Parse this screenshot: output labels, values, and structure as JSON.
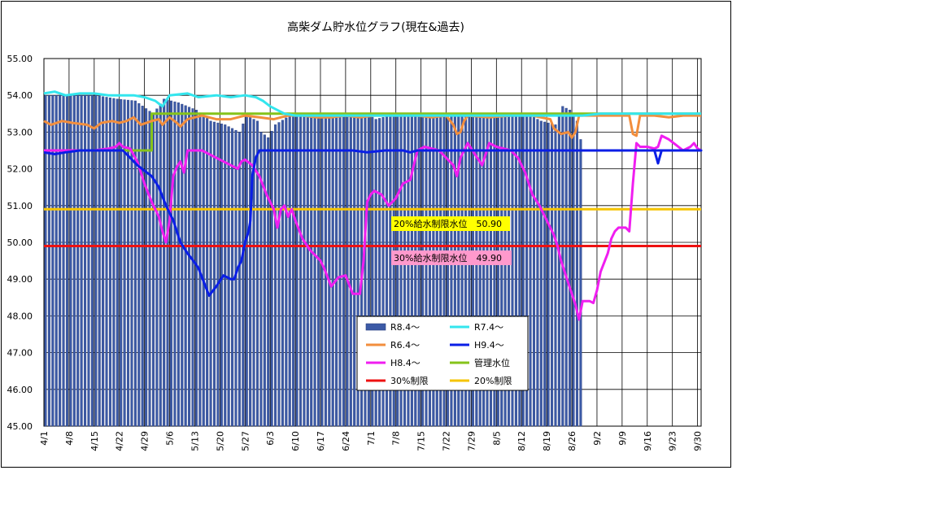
{
  "chart_data": {
    "type": "bar+line",
    "title": "高柴ダム貯水位グラフ(現在&過去)",
    "ylim": [
      45.0,
      55.0
    ],
    "yticks": [
      "45.00",
      "46.00",
      "47.00",
      "48.00",
      "49.00",
      "50.00",
      "51.00",
      "52.00",
      "53.00",
      "54.00",
      "55.00"
    ],
    "xticks": [
      "4/1",
      "4/8",
      "4/15",
      "4/22",
      "4/29",
      "5/6",
      "5/13",
      "5/20",
      "5/27",
      "6/3",
      "6/10",
      "6/17",
      "6/24",
      "7/1",
      "7/8",
      "7/15",
      "7/22",
      "7/29",
      "8/5",
      "8/12",
      "8/19",
      "8/26",
      "9/2",
      "9/9",
      "9/16",
      "9/23",
      "9/30"
    ],
    "days": 183,
    "grid": "vertical+horizontal",
    "legend_position": "bottom-center",
    "series": [
      {
        "name": "R8.4～",
        "type": "bar",
        "color": "#3c5aa6",
        "points": [
          [
            0,
            54.0
          ],
          [
            7,
            54.0
          ],
          [
            14,
            54.0
          ],
          [
            20,
            53.9
          ],
          [
            25,
            53.85
          ],
          [
            30,
            53.5
          ],
          [
            33,
            53.9
          ],
          [
            37,
            53.8
          ],
          [
            42,
            53.6
          ],
          [
            46,
            53.3
          ],
          [
            50,
            53.2
          ],
          [
            54,
            53.0
          ],
          [
            56,
            53.45
          ],
          [
            59,
            53.3
          ],
          [
            60,
            53.0
          ],
          [
            62,
            52.85
          ],
          [
            64,
            53.2
          ],
          [
            68,
            53.45
          ],
          [
            90,
            53.45
          ],
          [
            92,
            53.35
          ],
          [
            96,
            53.45
          ],
          [
            135,
            53.45
          ],
          [
            138,
            53.3
          ],
          [
            142,
            53.2
          ],
          [
            144,
            53.7
          ],
          [
            146,
            53.6
          ],
          [
            148,
            53.3
          ],
          [
            149,
            52.8
          ]
        ]
      },
      {
        "name": "R7.4～",
        "type": "line",
        "color": "#33e6ee",
        "points": [
          [
            0,
            54.05
          ],
          [
            3,
            54.1
          ],
          [
            6,
            54.0
          ],
          [
            10,
            54.05
          ],
          [
            14,
            54.05
          ],
          [
            18,
            54.0
          ],
          [
            25,
            54.0
          ],
          [
            28,
            53.95
          ],
          [
            31,
            53.85
          ],
          [
            33,
            53.7
          ],
          [
            34,
            53.85
          ],
          [
            35,
            54.0
          ],
          [
            40,
            54.05
          ],
          [
            43,
            53.95
          ],
          [
            48,
            54.0
          ],
          [
            52,
            53.95
          ],
          [
            56,
            54.0
          ],
          [
            59,
            53.95
          ],
          [
            61,
            53.85
          ],
          [
            63,
            53.7
          ],
          [
            65,
            53.6
          ],
          [
            67,
            53.5
          ],
          [
            70,
            53.45
          ],
          [
            75,
            53.45
          ],
          [
            125,
            53.45
          ],
          [
            150,
            53.45
          ],
          [
            155,
            53.5
          ],
          [
            160,
            53.5
          ],
          [
            183,
            53.5
          ]
        ]
      },
      {
        "name": "R6.4～",
        "type": "line",
        "color": "#f28e3d",
        "points": [
          [
            0,
            53.3
          ],
          [
            2,
            53.2
          ],
          [
            5,
            53.3
          ],
          [
            8,
            53.25
          ],
          [
            12,
            53.2
          ],
          [
            14,
            53.1
          ],
          [
            16,
            53.25
          ],
          [
            19,
            53.3
          ],
          [
            21,
            53.25
          ],
          [
            23,
            53.3
          ],
          [
            25,
            53.4
          ],
          [
            27,
            53.2
          ],
          [
            30,
            53.3
          ],
          [
            32,
            53.35
          ],
          [
            33,
            53.2
          ],
          [
            35,
            53.4
          ],
          [
            37,
            53.25
          ],
          [
            38,
            53.15
          ],
          [
            40,
            53.35
          ],
          [
            44,
            53.45
          ],
          [
            48,
            53.35
          ],
          [
            52,
            53.35
          ],
          [
            56,
            53.45
          ],
          [
            60,
            53.4
          ],
          [
            64,
            53.35
          ],
          [
            68,
            53.45
          ],
          [
            72,
            53.45
          ],
          [
            76,
            53.4
          ],
          [
            80,
            53.4
          ],
          [
            84,
            53.45
          ],
          [
            88,
            53.4
          ],
          [
            92,
            53.45
          ],
          [
            96,
            53.45
          ],
          [
            100,
            53.45
          ],
          [
            104,
            53.45
          ],
          [
            108,
            53.4
          ],
          [
            112,
            53.45
          ],
          [
            114,
            53.2
          ],
          [
            115,
            52.95
          ],
          [
            116,
            53.0
          ],
          [
            117,
            53.3
          ],
          [
            118,
            53.45
          ],
          [
            124,
            53.4
          ],
          [
            130,
            53.45
          ],
          [
            136,
            53.45
          ],
          [
            141,
            53.35
          ],
          [
            142,
            53.1
          ],
          [
            144,
            52.95
          ],
          [
            146,
            53.0
          ],
          [
            147,
            52.85
          ],
          [
            148,
            53.0
          ],
          [
            149,
            53.45
          ],
          [
            160,
            53.45
          ],
          [
            163,
            53.45
          ],
          [
            164,
            52.95
          ],
          [
            165,
            52.9
          ],
          [
            166,
            53.45
          ],
          [
            170,
            53.45
          ],
          [
            174,
            53.4
          ],
          [
            178,
            53.45
          ],
          [
            183,
            53.45
          ]
        ]
      },
      {
        "name": "H9.4～",
        "type": "line",
        "color": "#0a1ee6",
        "points": [
          [
            0,
            52.45
          ],
          [
            3,
            52.4
          ],
          [
            6,
            52.45
          ],
          [
            10,
            52.5
          ],
          [
            14,
            52.5
          ],
          [
            18,
            52.5
          ],
          [
            22,
            52.5
          ],
          [
            24,
            52.3
          ],
          [
            26,
            52.1
          ],
          [
            28,
            51.95
          ],
          [
            30,
            51.8
          ],
          [
            32,
            51.5
          ],
          [
            34,
            51.0
          ],
          [
            36,
            50.6
          ],
          [
            38,
            50.0
          ],
          [
            40,
            49.7
          ],
          [
            42,
            49.45
          ],
          [
            43,
            49.3
          ],
          [
            45,
            48.8
          ],
          [
            46,
            48.55
          ],
          [
            48,
            48.8
          ],
          [
            50,
            49.1
          ],
          [
            52,
            49.0
          ],
          [
            53,
            49.0
          ],
          [
            54,
            49.3
          ],
          [
            55,
            49.5
          ],
          [
            56,
            50.0
          ],
          [
            57,
            50.3
          ],
          [
            57.5,
            50.6
          ],
          [
            58,
            51.8
          ],
          [
            59,
            52.3
          ],
          [
            60,
            52.5
          ],
          [
            65,
            52.5
          ],
          [
            80,
            52.5
          ],
          [
            86,
            52.5
          ],
          [
            90,
            52.45
          ],
          [
            95,
            52.5
          ],
          [
            100,
            52.5
          ],
          [
            102,
            52.45
          ],
          [
            104,
            52.5
          ],
          [
            183,
            52.5
          ],
          [
            170,
            52.5
          ],
          [
            171,
            52.15
          ],
          [
            172,
            52.5
          ],
          [
            176,
            52.5
          ],
          [
            183,
            52.5
          ]
        ]
      },
      {
        "name": "H8.4～",
        "type": "line",
        "color": "#f01ef0",
        "points": [
          [
            0,
            52.5
          ],
          [
            5,
            52.5
          ],
          [
            10,
            52.5
          ],
          [
            14,
            52.5
          ],
          [
            18,
            52.55
          ],
          [
            20,
            52.6
          ],
          [
            21,
            52.7
          ],
          [
            22,
            52.6
          ],
          [
            24,
            52.55
          ],
          [
            26,
            52.2
          ],
          [
            28,
            51.6
          ],
          [
            30,
            51.1
          ],
          [
            32,
            50.7
          ],
          [
            33,
            50.3
          ],
          [
            34,
            50.0
          ],
          [
            35,
            50.6
          ],
          [
            36,
            51.8
          ],
          [
            37,
            52.05
          ],
          [
            38,
            52.2
          ],
          [
            39,
            51.9
          ],
          [
            40,
            52.5
          ],
          [
            44,
            52.5
          ],
          [
            46,
            52.4
          ],
          [
            49,
            52.25
          ],
          [
            52,
            52.1
          ],
          [
            54,
            52.0
          ],
          [
            55,
            52.2
          ],
          [
            56,
            52.25
          ],
          [
            58,
            52.1
          ],
          [
            60,
            51.8
          ],
          [
            62,
            51.3
          ],
          [
            64,
            50.9
          ],
          [
            65,
            50.4
          ],
          [
            66,
            50.9
          ],
          [
            67,
            51.0
          ],
          [
            68,
            50.7
          ],
          [
            69,
            50.9
          ],
          [
            70,
            50.6
          ],
          [
            72,
            50.1
          ],
          [
            74,
            49.8
          ],
          [
            76,
            49.6
          ],
          [
            77,
            49.5
          ],
          [
            78,
            49.3
          ],
          [
            80,
            48.8
          ],
          [
            82,
            49.05
          ],
          [
            84,
            49.1
          ],
          [
            86,
            48.6
          ],
          [
            88,
            48.6
          ],
          [
            89,
            49.5
          ],
          [
            90,
            51.1
          ],
          [
            91,
            51.3
          ],
          [
            92,
            51.4
          ],
          [
            94,
            51.3
          ],
          [
            96,
            51.0
          ],
          [
            98,
            51.2
          ],
          [
            100,
            51.6
          ],
          [
            102,
            51.7
          ],
          [
            104,
            52.5
          ],
          [
            106,
            52.6
          ],
          [
            110,
            52.5
          ],
          [
            114,
            52.1
          ],
          [
            115,
            51.8
          ],
          [
            116,
            52.3
          ],
          [
            118,
            52.7
          ],
          [
            120,
            52.4
          ],
          [
            122,
            52.1
          ],
          [
            124,
            52.7
          ],
          [
            126,
            52.6
          ],
          [
            128,
            52.55
          ],
          [
            130,
            52.5
          ],
          [
            132,
            52.3
          ],
          [
            134,
            51.9
          ],
          [
            136,
            51.3
          ],
          [
            138,
            51.0
          ],
          [
            140,
            50.6
          ],
          [
            142,
            50.2
          ],
          [
            143,
            49.9
          ],
          [
            144,
            49.5
          ],
          [
            146,
            48.9
          ],
          [
            148,
            48.3
          ],
          [
            149,
            47.9
          ],
          [
            150,
            48.4
          ],
          [
            152,
            48.4
          ],
          [
            153,
            48.35
          ],
          [
            154,
            48.7
          ],
          [
            155,
            49.2
          ],
          [
            157,
            49.7
          ],
          [
            158,
            50.1
          ],
          [
            159,
            50.3
          ],
          [
            160,
            50.4
          ],
          [
            162,
            50.4
          ],
          [
            163,
            50.3
          ],
          [
            164,
            51.6
          ],
          [
            165,
            52.7
          ],
          [
            166,
            52.6
          ],
          [
            168,
            52.6
          ],
          [
            170,
            52.55
          ],
          [
            171,
            52.6
          ],
          [
            172,
            52.9
          ],
          [
            174,
            52.8
          ],
          [
            176,
            52.65
          ],
          [
            178,
            52.5
          ],
          [
            180,
            52.6
          ],
          [
            181,
            52.7
          ],
          [
            182,
            52.55
          ],
          [
            183,
            52.5
          ]
        ]
      },
      {
        "name": "管理水位",
        "type": "line",
        "color": "#86c31a",
        "points": [
          [
            0,
            52.5
          ],
          [
            30,
            52.5
          ],
          [
            30,
            53.5
          ],
          [
            183,
            53.5
          ]
        ]
      },
      {
        "name": "30%制限",
        "type": "line",
        "color": "#ee1111",
        "points": [
          [
            0,
            49.9
          ],
          [
            183,
            49.9
          ]
        ]
      },
      {
        "name": "20%制限",
        "type": "line",
        "color": "#f5c400",
        "points": [
          [
            0,
            50.9
          ],
          [
            183,
            50.9
          ]
        ]
      }
    ],
    "annotations": [
      {
        "text": "20%給水制限水位　50.90",
        "bg": "#ffff00"
      },
      {
        "text": "30%給水制限水位　49.90",
        "bg": "#ff99cc"
      }
    ]
  }
}
